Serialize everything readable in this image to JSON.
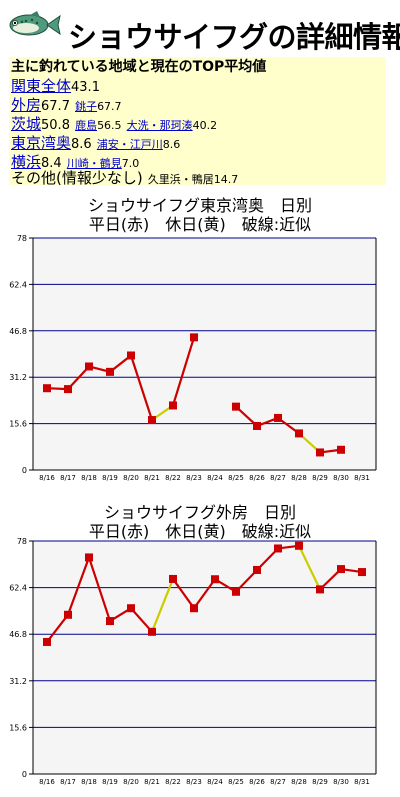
{
  "page": {
    "title": "ショウサイフグの詳細情報",
    "fish_icon": "fish-icon"
  },
  "summary": {
    "heading": "主に釣れている地域と現在のTOP平均値",
    "regions": [
      {
        "name": "関東全体",
        "value": "43.1",
        "subs": []
      },
      {
        "name": "外房",
        "value": "67.7",
        "subs": [
          {
            "name": "銚子",
            "value": "67.7"
          }
        ]
      },
      {
        "name": "茨城",
        "value": "50.8",
        "subs": [
          {
            "name": "鹿島",
            "value": "56.5"
          },
          {
            "name": "大洗・那珂湊",
            "value": "40.2"
          }
        ]
      },
      {
        "name": "東京湾奥",
        "value": "8.6",
        "subs": [
          {
            "name": "浦安・江戸川",
            "value": "8.6"
          }
        ]
      },
      {
        "name": "横浜",
        "value": "8.4",
        "subs": [
          {
            "name": "川崎・鶴見",
            "value": "7.0"
          }
        ]
      }
    ],
    "other": {
      "label": "その他(情報少なし)",
      "detail": "久里浜・鴨居14.7"
    }
  },
  "colors": {
    "plot_bg": "#f5f5f5",
    "axis": "#000000",
    "grid": "#000088",
    "weekday": "#cc0000",
    "holiday": "#cccc00",
    "marker": "#cc0000"
  },
  "chart_data": [
    {
      "type": "line",
      "title": "ショウサイフグ東京湾奥　日別",
      "subtitle": "平日(赤)　休日(黄)　破線:近似",
      "ylim": [
        0,
        78
      ],
      "yticks": [
        "0",
        "15.6",
        "31.2",
        "46.8",
        "62.4",
        "78"
      ],
      "categories": [
        "8/16",
        "8/17",
        "8/18",
        "8/19",
        "8/20",
        "8/21",
        "8/22",
        "8/23",
        "8/24",
        "8/25",
        "8/26",
        "8/27",
        "8/28",
        "8/29",
        "8/30",
        "8/31"
      ],
      "values": [
        27.5,
        27.2,
        34.8,
        33.0,
        38.5,
        16.8,
        21.7,
        44.6,
        null,
        21.3,
        14.8,
        17.5,
        12.3,
        5.9,
        6.8,
        null
      ],
      "segment_kinds": [
        "weekday",
        "weekday",
        "weekday",
        "weekday",
        "weekday",
        "holiday",
        "weekday",
        null,
        null,
        "weekday",
        "weekday",
        "weekday",
        "holiday",
        "weekday",
        null
      ],
      "grid": true
    },
    {
      "type": "line",
      "title": "ショウサイフグ外房　日別",
      "subtitle": "平日(赤)　休日(黄)　破線:近似",
      "ylim": [
        0,
        78
      ],
      "yticks": [
        "0",
        "15.6",
        "31.2",
        "46.8",
        "62.4",
        "78"
      ],
      "categories": [
        "8/16",
        "8/17",
        "8/18",
        "8/19",
        "8/20",
        "8/21",
        "8/22",
        "8/23",
        "8/24",
        "8/25",
        "8/26",
        "8/27",
        "8/28",
        "8/29",
        "8/30",
        "8/31"
      ],
      "values": [
        44.2,
        53.3,
        72.5,
        51.2,
        55.5,
        47.6,
        65.3,
        55.5,
        65.2,
        61.0,
        68.3,
        75.5,
        76.4,
        61.8,
        68.6,
        67.6
      ],
      "segment_kinds": [
        "weekday",
        "weekday",
        "weekday",
        "weekday",
        "weekday",
        "holiday",
        "weekday",
        "weekday",
        "weekday",
        "weekday",
        "weekday",
        "weekday",
        "holiday",
        "weekday",
        "weekday"
      ],
      "grid": true
    }
  ]
}
